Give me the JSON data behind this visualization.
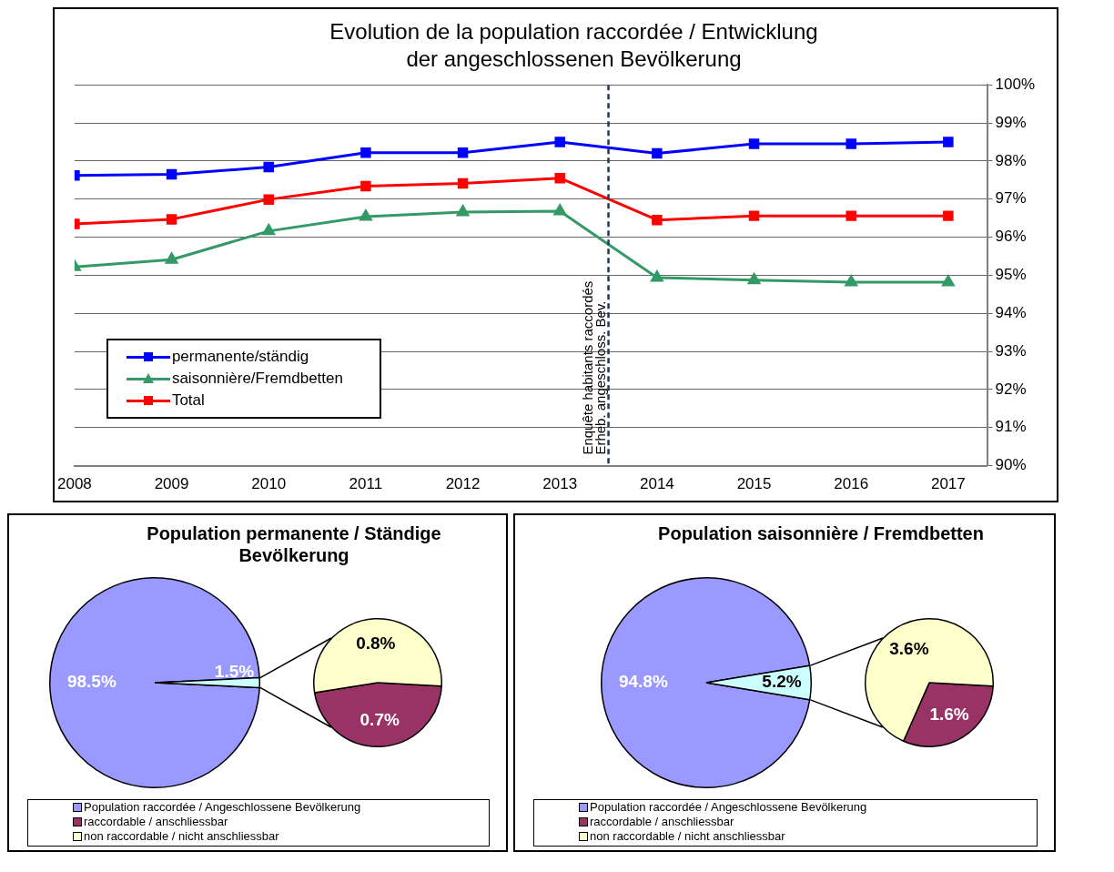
{
  "chart_data": [
    {
      "type": "line",
      "title": "Evolution de la population raccordée / Entwicklung der angeschlossenen Bevölkerung",
      "x": [
        2008,
        2009,
        2010,
        2011,
        2012,
        2013,
        2014,
        2015,
        2016,
        2017
      ],
      "xlim": [
        2008,
        2017.4
      ],
      "xticks": [
        2008,
        2009,
        2010,
        2011,
        2012,
        2013,
        2014,
        2015,
        2016,
        2017
      ],
      "ylim": [
        90,
        100
      ],
      "yticks": [
        {
          "value": 90,
          "label": "90%"
        },
        {
          "value": 91,
          "label": "91%"
        },
        {
          "value": 92,
          "label": "92%"
        },
        {
          "value": 93,
          "label": "93%"
        },
        {
          "value": 94,
          "label": "94%"
        },
        {
          "value": 95,
          "label": "95%"
        },
        {
          "value": 96,
          "label": "96%"
        },
        {
          "value": 97,
          "label": "97%"
        },
        {
          "value": 98,
          "label": "98%"
        },
        {
          "value": 99,
          "label": "99%"
        },
        {
          "value": 100,
          "label": "100%"
        }
      ],
      "grid": "y",
      "legend": "bottom left",
      "series": [
        {
          "name": "permanente/ständig",
          "color": "#0000ff",
          "marker": "square",
          "values": [
            97.62,
            97.65,
            97.84,
            98.22,
            98.22,
            98.5,
            98.2,
            98.45,
            98.45,
            98.5
          ]
        },
        {
          "name": "saisonnière/Fremdbetten",
          "color": "#339966",
          "marker": "triangle",
          "values": [
            95.22,
            95.41,
            96.16,
            96.54,
            96.66,
            96.68,
            94.94,
            94.87,
            94.82,
            94.82
          ]
        },
        {
          "name": "Total",
          "color": "#ff0000",
          "marker": "square",
          "values": [
            96.35,
            96.47,
            96.99,
            97.34,
            97.41,
            97.55,
            96.45,
            96.56,
            96.56,
            96.56
          ]
        }
      ],
      "ref_lines": [
        {
          "axis": "x",
          "value": 2013.5,
          "label": "Enquête habitants raccordés\nErheb. angeschloss. Bev.",
          "color": "#1f3864",
          "line_style": "dashed"
        }
      ]
    },
    {
      "type": "pie",
      "title": "Population permanente / Ständige Bevölkerung",
      "categories": [
        "Population raccordée / Angeschlossene Bevölkerung",
        null
      ],
      "values": [
        98.5,
        1.5
      ],
      "colors": [
        "#9999ff",
        "#ccffff"
      ],
      "value_labels": [
        "98.5%",
        "1.5%"
      ],
      "legend": "bottom"
    },
    {
      "type": "pie",
      "categories": [
        "raccordable / anschliessbar",
        "non raccordable / nicht anschliessbar"
      ],
      "values": [
        0.7,
        0.8
      ],
      "colors": [
        "#993366",
        "#ffffcc"
      ],
      "value_labels": [
        "0.7%",
        "0.8%"
      ],
      "legend": "bottom"
    },
    {
      "type": "pie",
      "title": "Population saisonnière / Fremdbetten",
      "categories": [
        "Population raccordée / Angeschlossene Bevölkerung",
        null
      ],
      "values": [
        94.8,
        5.2
      ],
      "colors": [
        "#9999ff",
        "#ccffff"
      ],
      "value_labels": [
        "94.8%",
        "5.2%"
      ],
      "legend": "bottom"
    },
    {
      "type": "pie",
      "categories": [
        "raccordable / anschliessbar",
        "non raccordable / nicht anschliessbar"
      ],
      "values": [
        1.6,
        3.6
      ],
      "colors": [
        "#993366",
        "#ffffcc"
      ],
      "value_labels": [
        "1.6%",
        "3.6%"
      ],
      "legend": "bottom"
    }
  ]
}
